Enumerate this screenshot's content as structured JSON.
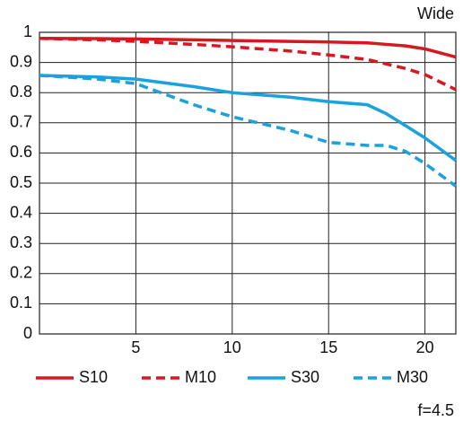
{
  "chart_data": {
    "type": "line",
    "title": "Wide",
    "annotation": "f=4.5",
    "x": [
      0,
      3,
      5,
      8,
      10,
      13,
      15,
      17,
      18,
      19,
      20,
      21.6
    ],
    "series": [
      {
        "name": "S10",
        "color": "#d7191f",
        "dashed": false,
        "values": [
          0.98,
          0.979,
          0.978,
          0.975,
          0.973,
          0.97,
          0.968,
          0.965,
          0.96,
          0.955,
          0.945,
          0.918
        ]
      },
      {
        "name": "M10",
        "color": "#d7191f",
        "dashed": true,
        "values": [
          0.98,
          0.975,
          0.97,
          0.96,
          0.952,
          0.938,
          0.925,
          0.91,
          0.895,
          0.88,
          0.86,
          0.81
        ]
      },
      {
        "name": "S30",
        "color": "#1ba1dc",
        "dashed": false,
        "values": [
          0.857,
          0.852,
          0.845,
          0.82,
          0.8,
          0.785,
          0.77,
          0.76,
          0.73,
          0.69,
          0.65,
          0.575
        ]
      },
      {
        "name": "M30",
        "color": "#1ba1dc",
        "dashed": true,
        "values": [
          0.857,
          0.845,
          0.83,
          0.76,
          0.72,
          0.675,
          0.635,
          0.625,
          0.625,
          0.605,
          0.565,
          0.49
        ]
      }
    ],
    "xlim": [
      0,
      21.6
    ],
    "xticks": [
      5,
      10,
      15,
      20
    ],
    "ylim": [
      0,
      1
    ],
    "yticks": [
      0,
      0.1,
      0.2,
      0.3,
      0.4,
      0.5,
      0.6,
      0.7,
      0.8,
      0.9,
      1
    ],
    "grid": true
  }
}
